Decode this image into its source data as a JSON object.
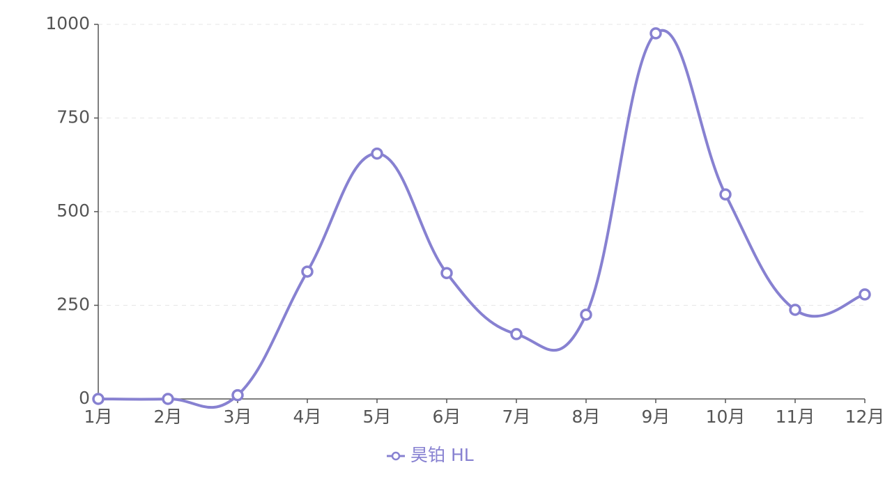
{
  "chart_data": {
    "type": "line",
    "smooth": true,
    "grid": true,
    "legend": "bottom",
    "categories": [
      "1月",
      "2月",
      "3月",
      "4月",
      "5月",
      "6月",
      "7月",
      "8月",
      "9月",
      "10月",
      "11月",
      "12月"
    ],
    "series": [
      {
        "name": "昊铂 HL",
        "color": "#8781d1",
        "values": [
          0,
          0,
          10,
          340,
          655,
          336,
          173,
          225,
          976,
          546,
          238,
          279
        ]
      }
    ],
    "ylim": [
      0,
      1000
    ],
    "yticks": [
      0,
      250,
      500,
      750,
      1000
    ]
  }
}
